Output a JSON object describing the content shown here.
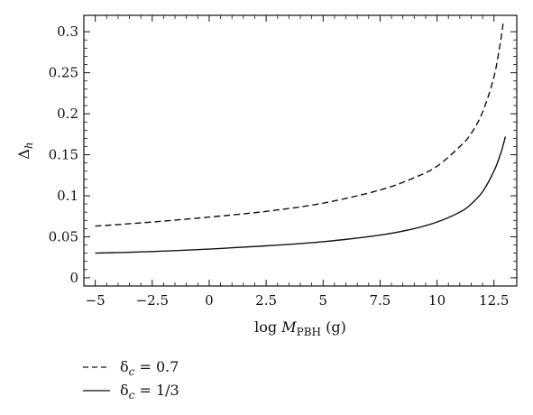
{
  "chart_data": {
    "type": "line",
    "title": "",
    "xlabel": {
      "prefix": "log ",
      "var": "M",
      "sub": "PBH",
      "suffix": " (g)"
    },
    "ylabel": {
      "var": "Δ",
      "sub": "h"
    },
    "xlim": [
      -5.5,
      13.5
    ],
    "ylim": [
      -0.01,
      0.32
    ],
    "xticks": [
      -5,
      -2.5,
      0,
      2.5,
      5,
      7.5,
      10,
      12.5
    ],
    "xtick_labels": [
      "−5",
      "−2.5",
      "0",
      "2.5",
      "5",
      "7.5",
      "10",
      "12.5"
    ],
    "yticks": [
      0,
      0.05,
      0.1,
      0.15,
      0.2,
      0.25,
      0.3
    ],
    "ytick_labels": [
      "0",
      "0.05",
      "0.1",
      "0.15",
      "0.2",
      "0.25",
      "0.3"
    ],
    "grid": false,
    "legend_placement": "bottom-left, below plot",
    "series": [
      {
        "name": "δ_c = 0.7",
        "legend": {
          "var": "δ",
          "sub": "c",
          "rest": " = 0.7"
        },
        "style": "dashed",
        "x": [
          -5,
          -2.5,
          0,
          2.5,
          5,
          7.5,
          9,
          10,
          11,
          11.5,
          12,
          12.5,
          12.8,
          12.9
        ],
        "y": [
          0.063,
          0.068,
          0.074,
          0.081,
          0.091,
          0.107,
          0.122,
          0.136,
          0.16,
          0.176,
          0.202,
          0.245,
          0.29,
          0.31
        ]
      },
      {
        "name": "δ_c = 1/3",
        "legend": {
          "var": "δ",
          "sub": "c",
          "rest": " = 1/3"
        },
        "style": "solid",
        "x": [
          -5,
          -2.5,
          0,
          2.5,
          5,
          7.5,
          9,
          10,
          11,
          11.5,
          12,
          12.5,
          12.8,
          13
        ],
        "y": [
          0.03,
          0.032,
          0.035,
          0.039,
          0.044,
          0.052,
          0.06,
          0.068,
          0.08,
          0.09,
          0.105,
          0.13,
          0.152,
          0.172
        ]
      }
    ]
  }
}
